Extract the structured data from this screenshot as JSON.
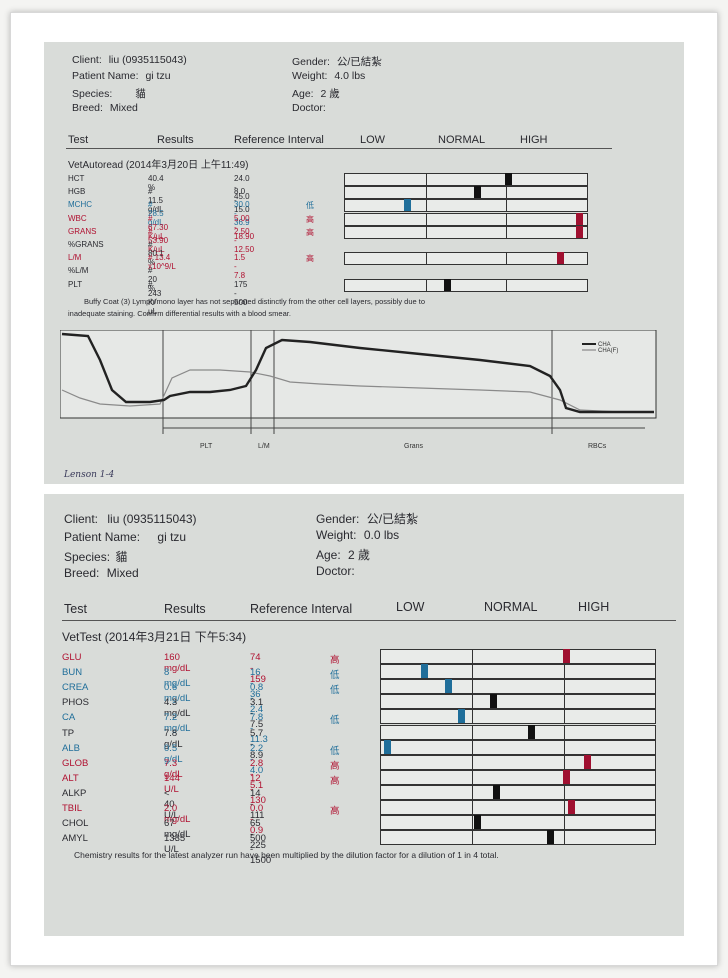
{
  "report1": {
    "header": {
      "client_label": "Client:",
      "client_value": "liu (0935115043)",
      "patient_label": "Patient Name:",
      "patient_value": "gi tzu",
      "species_label": "Species:",
      "species_value": "貓",
      "breed_label": "Breed:",
      "breed_value": "Mixed",
      "gender_label": "Gender:",
      "gender_value": "公/已結紮",
      "weight_label": "Weight:",
      "weight_value": "4.0 lbs",
      "age_label": "Age:",
      "age_value": "2 歲",
      "doctor_label": "Doctor:",
      "doctor_value": ""
    },
    "columns": {
      "test": "Test",
      "results": "Results",
      "reference": "Reference Interval",
      "low": "LOW",
      "normal": "NORMAL",
      "high": "HIGH"
    },
    "section": "VetAutoread (2014年3月20日 上午11:49)",
    "rows": [
      {
        "test": "HCT",
        "result": "40.4 %",
        "ref": "24.0 - 45.0",
        "flag": "",
        "cls": "",
        "marker": 0.68,
        "mcolor": "#111"
      },
      {
        "test": "HGB",
        "result": "# 11.5 g/dL",
        "ref": "8.0 - 15.0",
        "flag": "",
        "cls": "",
        "marker": 0.55,
        "mcolor": "#111"
      },
      {
        "test": "MCHC",
        "result": "# 28.5 g/dL",
        "ref": "30.0 - 36.9",
        "flag": "低",
        "cls": "blue",
        "marker": 0.25,
        "mcolor": "#1f6e9a"
      },
      {
        "test": "WBC",
        "result": "# 67.30 K/µL",
        "ref": "5.00 - 18.90",
        "flag": "高",
        "cls": "red",
        "marker": 0.985,
        "mcolor": "#a01030"
      },
      {
        "test": "GRANS",
        "result": "# 53.90 K/µL",
        "ref": "2.50 - 12.50",
        "flag": "高",
        "cls": "red",
        "marker": 0.985,
        "mcolor": "#a01030"
      },
      {
        "test": "%GRANS",
        "result": "# 80.1 %",
        "ref": "",
        "flag": "",
        "cls": "",
        "marker": null,
        "mcolor": ""
      },
      {
        "test": "L/M",
        "result": "# 13.4 x10^9/L",
        "ref": "1.5 - 7.8",
        "flag": "高",
        "cls": "red",
        "marker": 0.9,
        "mcolor": "#a01030"
      },
      {
        "test": "%L/M",
        "result": "# 20 %",
        "ref": "",
        "flag": "",
        "cls": "",
        "marker": null,
        "mcolor": ""
      },
      {
        "test": "PLT",
        "result": "# 243 K/µL",
        "ref": "175 - 500",
        "flag": "",
        "cls": "",
        "marker": 0.42,
        "mcolor": "#111"
      }
    ],
    "note_line1": "Buffy Coat (3) Lymph/mono layer has not separated distinctly from the other cell layers, possibly due to",
    "note_line2": "inadequate staining. Confirm differential results with a blood smear.",
    "graph": {
      "legend_a": "CHA",
      "legend_b": "CHA(F)",
      "labels": {
        "plt": "PLT",
        "lm": "L/M",
        "grans": "Grans",
        "rbcs": "RBCs"
      }
    },
    "handwriting": "Lenson 1-4"
  },
  "report2": {
    "header": {
      "client_label": "Client:",
      "client_value": "liu (0935115043)",
      "patient_label": "Patient Name:",
      "patient_value": "gi tzu",
      "species_label": "Species:",
      "species_value": "貓",
      "breed_label": "Breed:",
      "breed_value": "Mixed",
      "gender_label": "Gender:",
      "gender_value": "公/已結紮",
      "weight_label": "Weight:",
      "weight_value": "0.0 lbs",
      "age_label": "Age:",
      "age_value": "2 歲",
      "doctor_label": "Doctor:",
      "doctor_value": ""
    },
    "columns": {
      "test": "Test",
      "results": "Results",
      "reference": "Reference Interval",
      "low": "LOW",
      "normal": "NORMAL",
      "high": "HIGH"
    },
    "section": "VetTest (2014年3月21日 下午5:34)",
    "rows": [
      {
        "test": "GLU",
        "result": "160 mg/dL",
        "ref": "74 - 159",
        "flag": "高",
        "cls": "red",
        "marker": 0.68,
        "mcolor": "#a01030"
      },
      {
        "test": "BUN",
        "result": "8 mg/dL",
        "ref": "16 - 36",
        "flag": "低",
        "cls": "blue",
        "marker": 0.15,
        "mcolor": "#1f6e9a"
      },
      {
        "test": "CREA",
        "result": "0.6 mg/dL",
        "ref": "0.8 - 2.4",
        "flag": "低",
        "cls": "blue",
        "marker": 0.24,
        "mcolor": "#1f6e9a"
      },
      {
        "test": "PHOS",
        "result": "4.3 mg/dL",
        "ref": "3.1 - 7.5",
        "flag": "",
        "cls": "",
        "marker": 0.41,
        "mcolor": "#111"
      },
      {
        "test": "CA",
        "result": "7.2 mg/dL",
        "ref": "7.8 - 11.3",
        "flag": "低",
        "cls": "blue",
        "marker": 0.29,
        "mcolor": "#1f6e9a"
      },
      {
        "test": "TP",
        "result": "7.8 g/dL",
        "ref": "5.7 - 8.9",
        "flag": "",
        "cls": "",
        "marker": 0.55,
        "mcolor": "#111"
      },
      {
        "test": "ALB",
        "result": "0.5 g/dL",
        "ref": "2.2 - 4.0",
        "flag": "低",
        "cls": "blue",
        "marker": 0.01,
        "mcolor": "#1f6e9a"
      },
      {
        "test": "GLOB",
        "result": "7.3 g/dL",
        "ref": "2.8 - 5.1",
        "flag": "高",
        "cls": "red",
        "marker": 0.76,
        "mcolor": "#a01030"
      },
      {
        "test": "ALT",
        "result": "144 U/L",
        "ref": "12 - 130",
        "flag": "高",
        "cls": "red",
        "marker": 0.68,
        "mcolor": "#a01030"
      },
      {
        "test": "ALKP",
        "result": "< 40 U/L",
        "ref": "14 - 111",
        "flag": "",
        "cls": "",
        "marker": 0.42,
        "mcolor": "#111"
      },
      {
        "test": "TBIL",
        "result": "2.0 mg/dL",
        "ref": "0.0 - 0.9",
        "flag": "高",
        "cls": "red",
        "marker": 0.7,
        "mcolor": "#a01030"
      },
      {
        "test": "CHOL",
        "result": "67 mg/dL",
        "ref": "65 - 225",
        "flag": "",
        "cls": "",
        "marker": 0.35,
        "mcolor": "#111"
      },
      {
        "test": "AMYL",
        "result": "1335 U/L",
        "ref": "500 - 1500",
        "flag": "",
        "cls": "",
        "marker": 0.62,
        "mcolor": "#111"
      }
    ],
    "note": "Chemistry results for the latest analyzer run have been multiplied by the dilution factor for a dilution of 1 in 4 total."
  }
}
